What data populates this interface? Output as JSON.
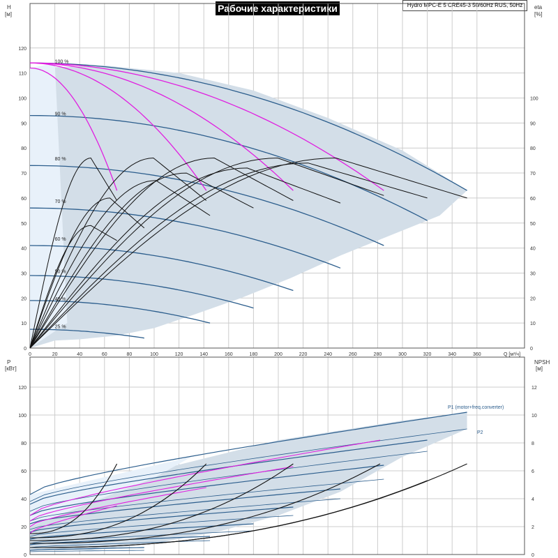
{
  "header": {
    "title": "Рабочие характеристики",
    "model": "Hydro MPC-E 5 CRE45-3 50/60Hz RUS, 50Hz"
  },
  "colors": {
    "envelope": "#d3dee8",
    "envelope_light": "#e8f1fa",
    "speed_curve": "#2b5d8c",
    "magenta": "#e01fe0",
    "black": "#111111",
    "grid": "#cccccc"
  },
  "chart_data": [
    {
      "type": "line",
      "title": "Рабочие характеристики",
      "xlabel": "Q [м³/ч]",
      "ylabel_left": [
        "H",
        "[м]"
      ],
      "ylabel_right": [
        "eta",
        "[%]"
      ],
      "xlim": [
        0,
        380
      ],
      "ylim": [
        0,
        130
      ],
      "x_ticks": [
        0,
        20,
        40,
        60,
        80,
        100,
        120,
        140,
        160,
        180,
        200,
        220,
        240,
        260,
        280,
        300,
        320,
        340,
        360
      ],
      "y_ticks": [
        0,
        10,
        20,
        30,
        40,
        50,
        60,
        70,
        80,
        90,
        100,
        110,
        120
      ],
      "eta_ticks": [
        0,
        10,
        20,
        30,
        40,
        50,
        60,
        70,
        80,
        90,
        100
      ],
      "grid": true,
      "speed_labels": [
        {
          "text": "100 %",
          "x": 20,
          "y": 114
        },
        {
          "text": "90 %",
          "x": 20,
          "y": 93
        },
        {
          "text": "80 %",
          "x": 20,
          "y": 75
        },
        {
          "text": "70 %",
          "x": 20,
          "y": 58
        },
        {
          "text": "60 %",
          "x": 20,
          "y": 43
        },
        {
          "text": "50 %",
          "x": 20,
          "y": 30
        },
        {
          "text": "40 %",
          "x": 20,
          "y": 19
        },
        {
          "text": "25 %",
          "x": 20,
          "y": 8
        }
      ],
      "envelope": [
        [
          0,
          112
        ],
        [
          60,
          113
        ],
        [
          120,
          110
        ],
        [
          180,
          103
        ],
        [
          240,
          92
        ],
        [
          300,
          79
        ],
        [
          352,
          63
        ],
        [
          330,
          53
        ],
        [
          290,
          45
        ],
        [
          250,
          37
        ],
        [
          210,
          28
        ],
        [
          170,
          20
        ],
        [
          130,
          13
        ],
        [
          100,
          8
        ],
        [
          70,
          5
        ],
        [
          40,
          3.5
        ],
        [
          20,
          3
        ],
        [
          0,
          0
        ]
      ],
      "speed_curves": [
        {
          "name": "100 %",
          "h0": 114,
          "qmax": 352,
          "hend": 63
        },
        {
          "name": "90 %",
          "h0": 93,
          "qmax": 320,
          "hend": 51
        },
        {
          "name": "80 %",
          "h0": 73,
          "qmax": 285,
          "hend": 41
        },
        {
          "name": "70 %",
          "h0": 56,
          "qmax": 250,
          "hend": 32
        },
        {
          "name": "60 %",
          "h0": 41,
          "qmax": 212,
          "hend": 23
        },
        {
          "name": "50 %",
          "h0": 29,
          "qmax": 180,
          "hend": 16
        },
        {
          "name": "40 %",
          "h0": 19,
          "qmax": 145,
          "hend": 10
        },
        {
          "name": "25 %",
          "h0": 7.5,
          "qmax": 92,
          "hend": 4
        }
      ],
      "pump_curves": [
        {
          "h0": 112,
          "qmax": 70,
          "hend": 63
        },
        {
          "h0": 114,
          "qmax": 142,
          "hend": 63
        },
        {
          "h0": 114,
          "qmax": 212,
          "hend": 63
        },
        {
          "h0": 114,
          "qmax": 285,
          "hend": 63
        }
      ],
      "eta_curves": [
        {
          "qmax": 70,
          "peak": 76,
          "end": 59
        },
        {
          "qmax": 142,
          "peak": 76,
          "end": 59
        },
        {
          "qmax": 212,
          "peak": 76,
          "end": 59
        },
        {
          "qmax": 285,
          "peak": 76,
          "end": 61
        },
        {
          "qmax": 352,
          "peak": 76,
          "end": 60
        },
        {
          "qmax": 320,
          "peak": 74,
          "end": 60
        },
        {
          "qmax": 250,
          "peak": 72,
          "end": 58
        },
        {
          "qmax": 180,
          "peak": 70,
          "end": 56
        },
        {
          "qmax": 145,
          "peak": 67,
          "end": 53
        },
        {
          "qmax": 92,
          "peak": 60,
          "end": 48
        },
        {
          "qmax": 70,
          "peak": 49,
          "end": 43
        }
      ]
    },
    {
      "type": "line",
      "xlabel": "",
      "ylabel_left": [
        "P",
        "[кВт]"
      ],
      "ylabel_right": [
        "NPSH",
        "[м]"
      ],
      "xlim": [
        0,
        380
      ],
      "ylim": [
        0,
        130
      ],
      "y_ticks": [
        0,
        20,
        40,
        60,
        80,
        100,
        120
      ],
      "npsh_ticks": [
        0,
        2,
        4,
        6,
        8,
        10,
        12
      ],
      "grid": true,
      "labels": [
        "P1 (motor+freq.converter)",
        "P2"
      ],
      "p1_curves": [
        {
          "p0": 43,
          "pend": 102,
          "qmax": 352
        },
        {
          "p0": 36,
          "pend": 82,
          "qmax": 320
        },
        {
          "p0": 28,
          "pend": 64,
          "qmax": 285
        },
        {
          "p0": 22,
          "pend": 47,
          "qmax": 250
        },
        {
          "p0": 16,
          "pend": 34,
          "qmax": 212
        },
        {
          "p0": 11,
          "pend": 22,
          "qmax": 180
        },
        {
          "p0": 7,
          "pend": 13,
          "qmax": 145
        },
        {
          "p0": 3,
          "pend": 5,
          "qmax": 92
        }
      ],
      "p2_curves": [
        {
          "p0": 38,
          "pend": 90,
          "qmax": 352
        },
        {
          "p0": 31,
          "pend": 74,
          "qmax": 320
        },
        {
          "p0": 24,
          "pend": 54,
          "qmax": 285
        },
        {
          "p0": 18,
          "pend": 40,
          "qmax": 250
        },
        {
          "p0": 13,
          "pend": 28,
          "qmax": 212
        },
        {
          "p0": 8,
          "pend": 17,
          "qmax": 180
        },
        {
          "p0": 5,
          "pend": 10,
          "qmax": 145
        },
        {
          "p0": 2,
          "pend": 3,
          "qmax": 92
        }
      ],
      "magenta_curves": [
        {
          "p0": 28,
          "pend": 82,
          "qmax": 282
        },
        {
          "p0": 24,
          "pend": 63,
          "qmax": 212
        },
        {
          "p0": 20,
          "pend": 48,
          "qmax": 142
        },
        {
          "p0": 15,
          "pend": 35,
          "qmax": 70
        }
      ],
      "npsh_curves": [
        {
          "qmax": 70,
          "n0": 1.5,
          "nend": 6.5
        },
        {
          "qmax": 142,
          "n0": 1.2,
          "nend": 6.5
        },
        {
          "qmax": 212,
          "n0": 1.0,
          "nend": 6.5
        },
        {
          "qmax": 282,
          "n0": 0.8,
          "nend": 6.5
        },
        {
          "qmax": 352,
          "n0": 0.5,
          "nend": 6.5
        },
        {
          "qmax": 320,
          "n0": 0.5,
          "nend": 5.3
        }
      ]
    }
  ]
}
